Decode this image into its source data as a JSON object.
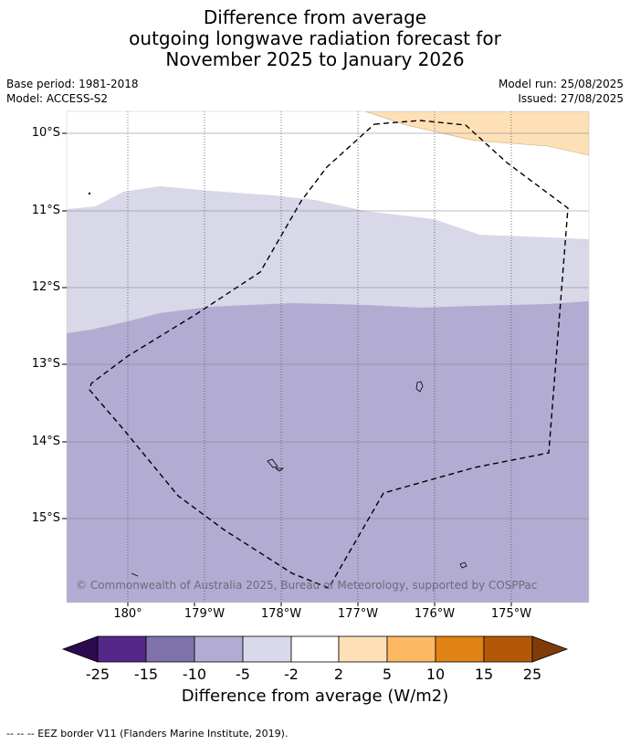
{
  "title": {
    "line1": "Difference from average",
    "line2": "outgoing longwave radiation forecast for",
    "line3": "November 2025 to January 2026"
  },
  "meta": {
    "base_period": "Base period: 1981-2018",
    "model": "Model: ACCESS-S2",
    "model_run": "Model run: 25/08/2025",
    "issued": "Issued: 27/08/2025"
  },
  "map": {
    "lat_labels": [
      "10°S",
      "11°S",
      "12°S",
      "13°S",
      "14°S",
      "15°S"
    ],
    "lon_labels": [
      "180°",
      "179°W",
      "178°W",
      "177°W",
      "176°W",
      "175°W"
    ],
    "lat_range": [
      -16.1,
      -9.7
    ],
    "lon_range": [
      179.2,
      -174.0
    ],
    "copyright": "© Commonwealth of Australia 2025, Bureau of Meteorology, supported by COSPPac",
    "fill_colors": {
      "band_minus5_minus2": "#d8d8e8",
      "band_minus10_minus5": "#b2acd2",
      "band_2_5": "#fee0b6"
    }
  },
  "colorbar": {
    "ticks": [
      "-25",
      "-15",
      "-10",
      "-5",
      "-2",
      "2",
      "5",
      "10",
      "15",
      "25"
    ],
    "colors": [
      "#2d0a4f",
      "#542788",
      "#8073ac",
      "#b2abd2",
      "#d8daeb",
      "#ffffff",
      "#fee0b6",
      "#fdb863",
      "#e08214",
      "#b35806",
      "#7f3b08"
    ],
    "label": "Difference from average (W/m2)"
  },
  "footnote": "--  --  -- EEZ border V11 (Flanders Marine Institute, 2019)."
}
